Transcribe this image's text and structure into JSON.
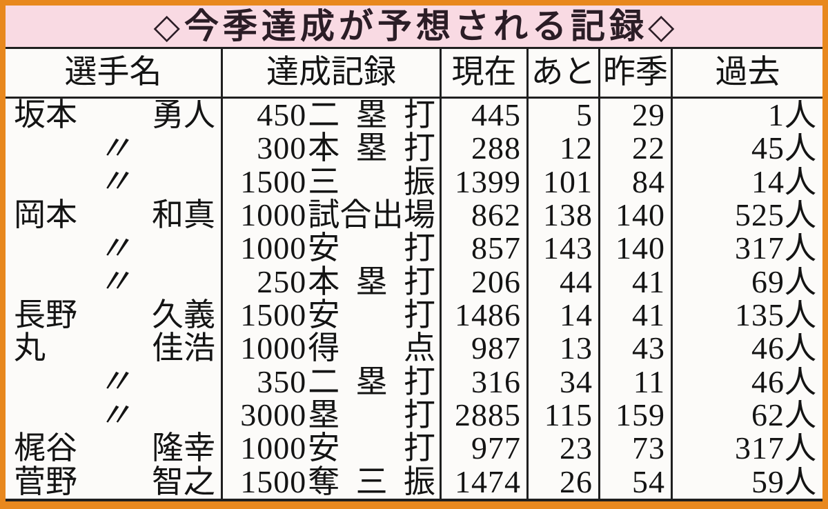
{
  "colors": {
    "frame": "#e8881e",
    "title_bg": "#f9dae3",
    "paper": "#fcfbf9",
    "line": "#1f1f1f",
    "ink": "#141414",
    "title_text": "#2b1d26"
  },
  "chart_data": {
    "type": "table",
    "title": "◇今季達成が予想される記録◇",
    "columns": [
      "選手名",
      "達成記録",
      "現在",
      "あと",
      "昨季",
      "過去"
    ],
    "ditto_mark": "〃",
    "rows": [
      {
        "player_family": "坂本",
        "player_given": "勇人",
        "record_num": "450",
        "record_label": "二塁打",
        "current": "445",
        "remaining": "5",
        "last_season": "29",
        "past": "1人"
      },
      {
        "player_ditto": "〃",
        "record_num": "300",
        "record_label": "本塁打",
        "current": "288",
        "remaining": "12",
        "last_season": "22",
        "past": "45人"
      },
      {
        "player_ditto": "〃",
        "record_num": "1500",
        "record_label": "三　振",
        "current": "1399",
        "remaining": "101",
        "last_season": "84",
        "past": "14人"
      },
      {
        "player_family": "岡本",
        "player_given": "和真",
        "record_num": "1000",
        "record_label": "試合出場",
        "current": "862",
        "remaining": "138",
        "last_season": "140",
        "past": "525人"
      },
      {
        "player_ditto": "〃",
        "record_num": "1000",
        "record_label": "安　打",
        "current": "857",
        "remaining": "143",
        "last_season": "140",
        "past": "317人"
      },
      {
        "player_ditto": "〃",
        "record_num": "250",
        "record_label": "本塁打",
        "current": "206",
        "remaining": "44",
        "last_season": "41",
        "past": "69人"
      },
      {
        "player_family": "長野",
        "player_given": "久義",
        "record_num": "1500",
        "record_label": "安　打",
        "current": "1486",
        "remaining": "14",
        "last_season": "41",
        "past": "135人"
      },
      {
        "player_family": "丸",
        "player_given": "佳浩",
        "record_num": "1000",
        "record_label": "得　点",
        "current": "987",
        "remaining": "13",
        "last_season": "43",
        "past": "46人"
      },
      {
        "player_ditto": "〃",
        "record_num": "350",
        "record_label": "二塁打",
        "current": "316",
        "remaining": "34",
        "last_season": "11",
        "past": "46人"
      },
      {
        "player_ditto": "〃",
        "record_num": "3000",
        "record_label": "塁　打",
        "current": "2885",
        "remaining": "115",
        "last_season": "159",
        "past": "62人"
      },
      {
        "player_family": "梶谷",
        "player_given": "隆幸",
        "record_num": "1000",
        "record_label": "安　打",
        "current": "977",
        "remaining": "23",
        "last_season": "73",
        "past": "317人"
      },
      {
        "player_family": "菅野",
        "player_given": "智之",
        "record_num": "1500",
        "record_label": "奪三振",
        "current": "1474",
        "remaining": "26",
        "last_season": "54",
        "past": "59人"
      }
    ]
  }
}
